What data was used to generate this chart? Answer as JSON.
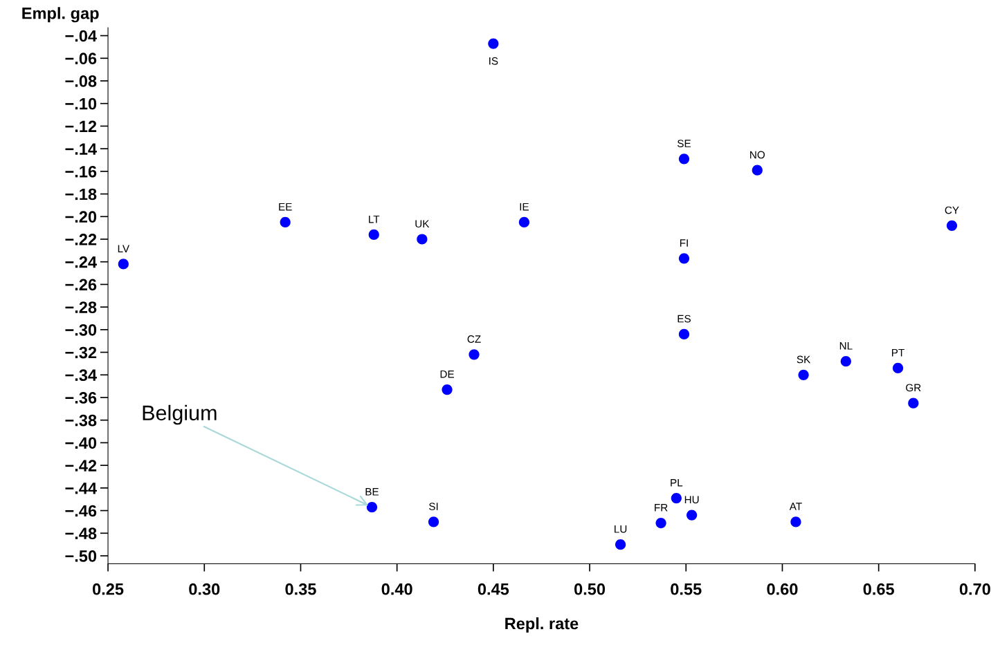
{
  "chart_data": {
    "type": "scatter",
    "xlabel": "Repl. rate",
    "ylabel": "Empl. gap",
    "x": [
      0.45,
      0.549,
      0.587,
      0.688,
      0.342,
      0.388,
      0.413,
      0.466,
      0.258,
      0.549,
      0.549,
      0.44,
      0.426,
      0.611,
      0.633,
      0.66,
      0.668,
      0.387,
      0.419,
      0.516,
      0.537,
      0.545,
      0.553,
      0.607
    ],
    "values": [
      -0.047,
      -0.149,
      -0.159,
      -0.208,
      -0.205,
      -0.216,
      -0.22,
      -0.205,
      -0.242,
      -0.237,
      -0.304,
      -0.322,
      -0.353,
      -0.34,
      -0.328,
      -0.334,
      -0.365,
      -0.457,
      -0.47,
      -0.49,
      -0.471,
      -0.449,
      -0.464,
      -0.47
    ],
    "color": "#0000ff",
    "marker": "circle",
    "grid": false,
    "legend": false,
    "xlim": [
      0.25,
      0.7
    ],
    "ylim": [
      -0.507,
      -0.033
    ],
    "xticks": [
      {
        "value": 0.25,
        "label": "0.25"
      },
      {
        "value": 0.3,
        "label": "0.30"
      },
      {
        "value": 0.35,
        "label": "0.35"
      },
      {
        "value": 0.4,
        "label": "0.40"
      },
      {
        "value": 0.45,
        "label": "0.45"
      },
      {
        "value": 0.5,
        "label": "0.50"
      },
      {
        "value": 0.55,
        "label": "0.55"
      },
      {
        "value": 0.6,
        "label": "0.60"
      },
      {
        "value": 0.65,
        "label": "0.65"
      },
      {
        "value": 0.7,
        "label": "0.70"
      }
    ],
    "yticks": [
      {
        "value": -0.04,
        "label": "−.04"
      },
      {
        "value": -0.06,
        "label": "−.06"
      },
      {
        "value": -0.08,
        "label": "−.08"
      },
      {
        "value": -0.1,
        "label": "−.10"
      },
      {
        "value": -0.12,
        "label": "−.12"
      },
      {
        "value": -0.14,
        "label": "−.14"
      },
      {
        "value": -0.16,
        "label": "−.16"
      },
      {
        "value": -0.18,
        "label": "−.18"
      },
      {
        "value": -0.2,
        "label": "−.20"
      },
      {
        "value": -0.22,
        "label": "−.22"
      },
      {
        "value": -0.24,
        "label": "−.24"
      },
      {
        "value": -0.26,
        "label": "−.26"
      },
      {
        "value": -0.28,
        "label": "−.28"
      },
      {
        "value": -0.3,
        "label": "−.30"
      },
      {
        "value": -0.32,
        "label": "−.32"
      },
      {
        "value": -0.34,
        "label": "−.34"
      },
      {
        "value": -0.36,
        "label": "−.36"
      },
      {
        "value": -0.38,
        "label": "−.38"
      },
      {
        "value": -0.4,
        "label": "−.40"
      },
      {
        "value": -0.42,
        "label": "−.42"
      },
      {
        "value": -0.44,
        "label": "−.44"
      },
      {
        "value": -0.46,
        "label": "−.46"
      },
      {
        "value": -0.48,
        "label": "−.48"
      },
      {
        "value": -0.5,
        "label": "−.50"
      }
    ],
    "annotations": [
      {
        "text": "IS",
        "x": 0.45,
        "y": -0.047
      },
      {
        "text": "SE",
        "x": 0.549,
        "y": -0.149
      },
      {
        "text": "NO",
        "x": 0.587,
        "y": -0.159
      },
      {
        "text": "CY",
        "x": 0.688,
        "y": -0.208
      },
      {
        "text": "EE",
        "x": 0.342,
        "y": -0.205
      },
      {
        "text": "LT",
        "x": 0.388,
        "y": -0.216
      },
      {
        "text": "UK",
        "x": 0.413,
        "y": -0.22
      },
      {
        "text": "IE",
        "x": 0.466,
        "y": -0.205
      },
      {
        "text": "LV",
        "x": 0.258,
        "y": -0.242
      },
      {
        "text": "FI",
        "x": 0.549,
        "y": -0.237
      },
      {
        "text": "ES",
        "x": 0.549,
        "y": -0.304
      },
      {
        "text": "CZ",
        "x": 0.44,
        "y": -0.322
      },
      {
        "text": "DE",
        "x": 0.426,
        "y": -0.353
      },
      {
        "text": "SK",
        "x": 0.611,
        "y": -0.34
      },
      {
        "text": "NL",
        "x": 0.633,
        "y": -0.328
      },
      {
        "text": "PT",
        "x": 0.66,
        "y": -0.334
      },
      {
        "text": "GR",
        "x": 0.668,
        "y": -0.365
      },
      {
        "text": "BE",
        "x": 0.387,
        "y": -0.457
      },
      {
        "text": "SI",
        "x": 0.419,
        "y": -0.47
      },
      {
        "text": "LU",
        "x": 0.516,
        "y": -0.49
      },
      {
        "text": "FR",
        "x": 0.537,
        "y": -0.471
      },
      {
        "text": "PL",
        "x": 0.545,
        "y": -0.449
      },
      {
        "text": "HU",
        "x": 0.553,
        "y": -0.464
      },
      {
        "text": "AT",
        "x": 0.607,
        "y": -0.47
      },
      {
        "text": "Belgium",
        "x": 0.387,
        "y": -0.457
      }
    ]
  }
}
